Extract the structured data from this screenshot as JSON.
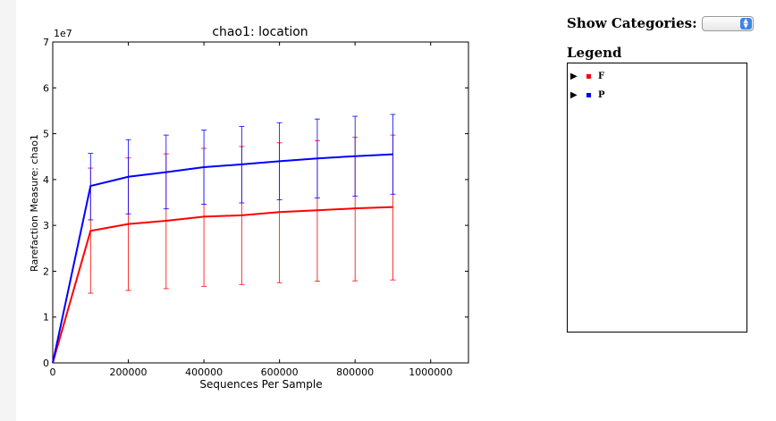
{
  "chart_data": {
    "type": "line",
    "title": "chao1: location",
    "xlabel": "Sequences Per Sample",
    "ylabel": "Rarefaction Measure: chao1",
    "y_scale_label": "1e7",
    "xlim": [
      0,
      1100000
    ],
    "ylim": [
      0,
      7
    ],
    "xticks": [
      0,
      200000,
      400000,
      600000,
      800000,
      1000000
    ],
    "yticks": [
      0,
      1,
      2,
      3,
      4,
      5,
      6,
      7
    ],
    "x": [
      0,
      100000,
      200000,
      300000,
      400000,
      500000,
      600000,
      700000,
      800000,
      900000
    ],
    "series": [
      {
        "name": "F",
        "color": "#ff0000",
        "values": [
          0,
          2.88,
          3.03,
          3.1,
          3.19,
          3.22,
          3.29,
          3.33,
          3.37,
          3.4
        ],
        "err_low": [
          0,
          1.52,
          1.58,
          1.62,
          1.67,
          1.71,
          1.75,
          1.78,
          1.79,
          1.81
        ],
        "err_high": [
          0,
          4.25,
          4.47,
          4.56,
          4.68,
          4.72,
          4.8,
          4.85,
          4.92,
          4.97
        ]
      },
      {
        "name": "P",
        "color": "#0000ff",
        "values": [
          0,
          3.86,
          4.06,
          4.16,
          4.27,
          4.33,
          4.4,
          4.46,
          4.51,
          4.55
        ],
        "err_low": [
          0,
          3.12,
          3.25,
          3.36,
          3.46,
          3.49,
          3.56,
          3.6,
          3.64,
          3.68
        ],
        "err_high": [
          0,
          4.57,
          4.87,
          4.97,
          5.08,
          5.16,
          5.24,
          5.32,
          5.38,
          5.42
        ]
      }
    ],
    "grid": false
  },
  "sidebar": {
    "show_categories_label": "Show Categories:",
    "select_value": "",
    "legend_title": "Legend",
    "legend_items": [
      {
        "label": "F",
        "color": "#ff0000"
      },
      {
        "label": "P",
        "color": "#0000ff"
      }
    ]
  }
}
